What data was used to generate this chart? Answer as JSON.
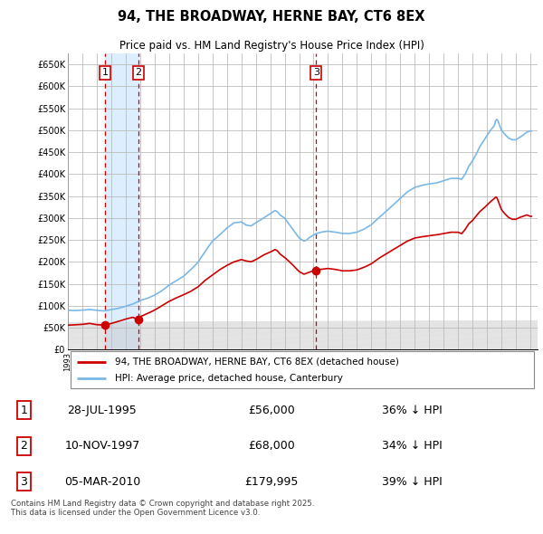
{
  "title": "94, THE BROADWAY, HERNE BAY, CT6 8EX",
  "subtitle": "Price paid vs. HM Land Registry's House Price Index (HPI)",
  "legend_line1": "94, THE BROADWAY, HERNE BAY, CT6 8EX (detached house)",
  "legend_line2": "HPI: Average price, detached house, Canterbury",
  "footer": "Contains HM Land Registry data © Crown copyright and database right 2025.\nThis data is licensed under the Open Government Licence v3.0.",
  "transactions": [
    {
      "label": "1",
      "date": "28-JUL-1995",
      "price": 56000,
      "pct": "36% ↓ HPI",
      "x": 1995.57
    },
    {
      "label": "2",
      "date": "10-NOV-1997",
      "price": 68000,
      "pct": "34% ↓ HPI",
      "x": 1997.86
    },
    {
      "label": "3",
      "date": "05-MAR-2010",
      "price": 179995,
      "pct": "39% ↓ HPI",
      "x": 2010.17
    }
  ],
  "hpi_color": "#7ab8e8",
  "hpi_fill_color": "#ddeeff",
  "price_color": "#cc0000",
  "vline_color": "#cc0000",
  "vfill_color": "#ddeeff",
  "hatch_color": "#c8c8c8",
  "grid_color": "#bbbbbb",
  "ylim": [
    0,
    675000
  ],
  "xlim_start": 1993.0,
  "xlim_end": 2025.5,
  "yticks": [
    0,
    50000,
    100000,
    150000,
    200000,
    250000,
    300000,
    350000,
    400000,
    450000,
    500000,
    550000,
    600000,
    650000
  ],
  "ytick_labels": [
    "£0",
    "£50K",
    "£100K",
    "£150K",
    "£200K",
    "£250K",
    "£300K",
    "£350K",
    "£400K",
    "£450K",
    "£500K",
    "£550K",
    "£600K",
    "£650K"
  ]
}
